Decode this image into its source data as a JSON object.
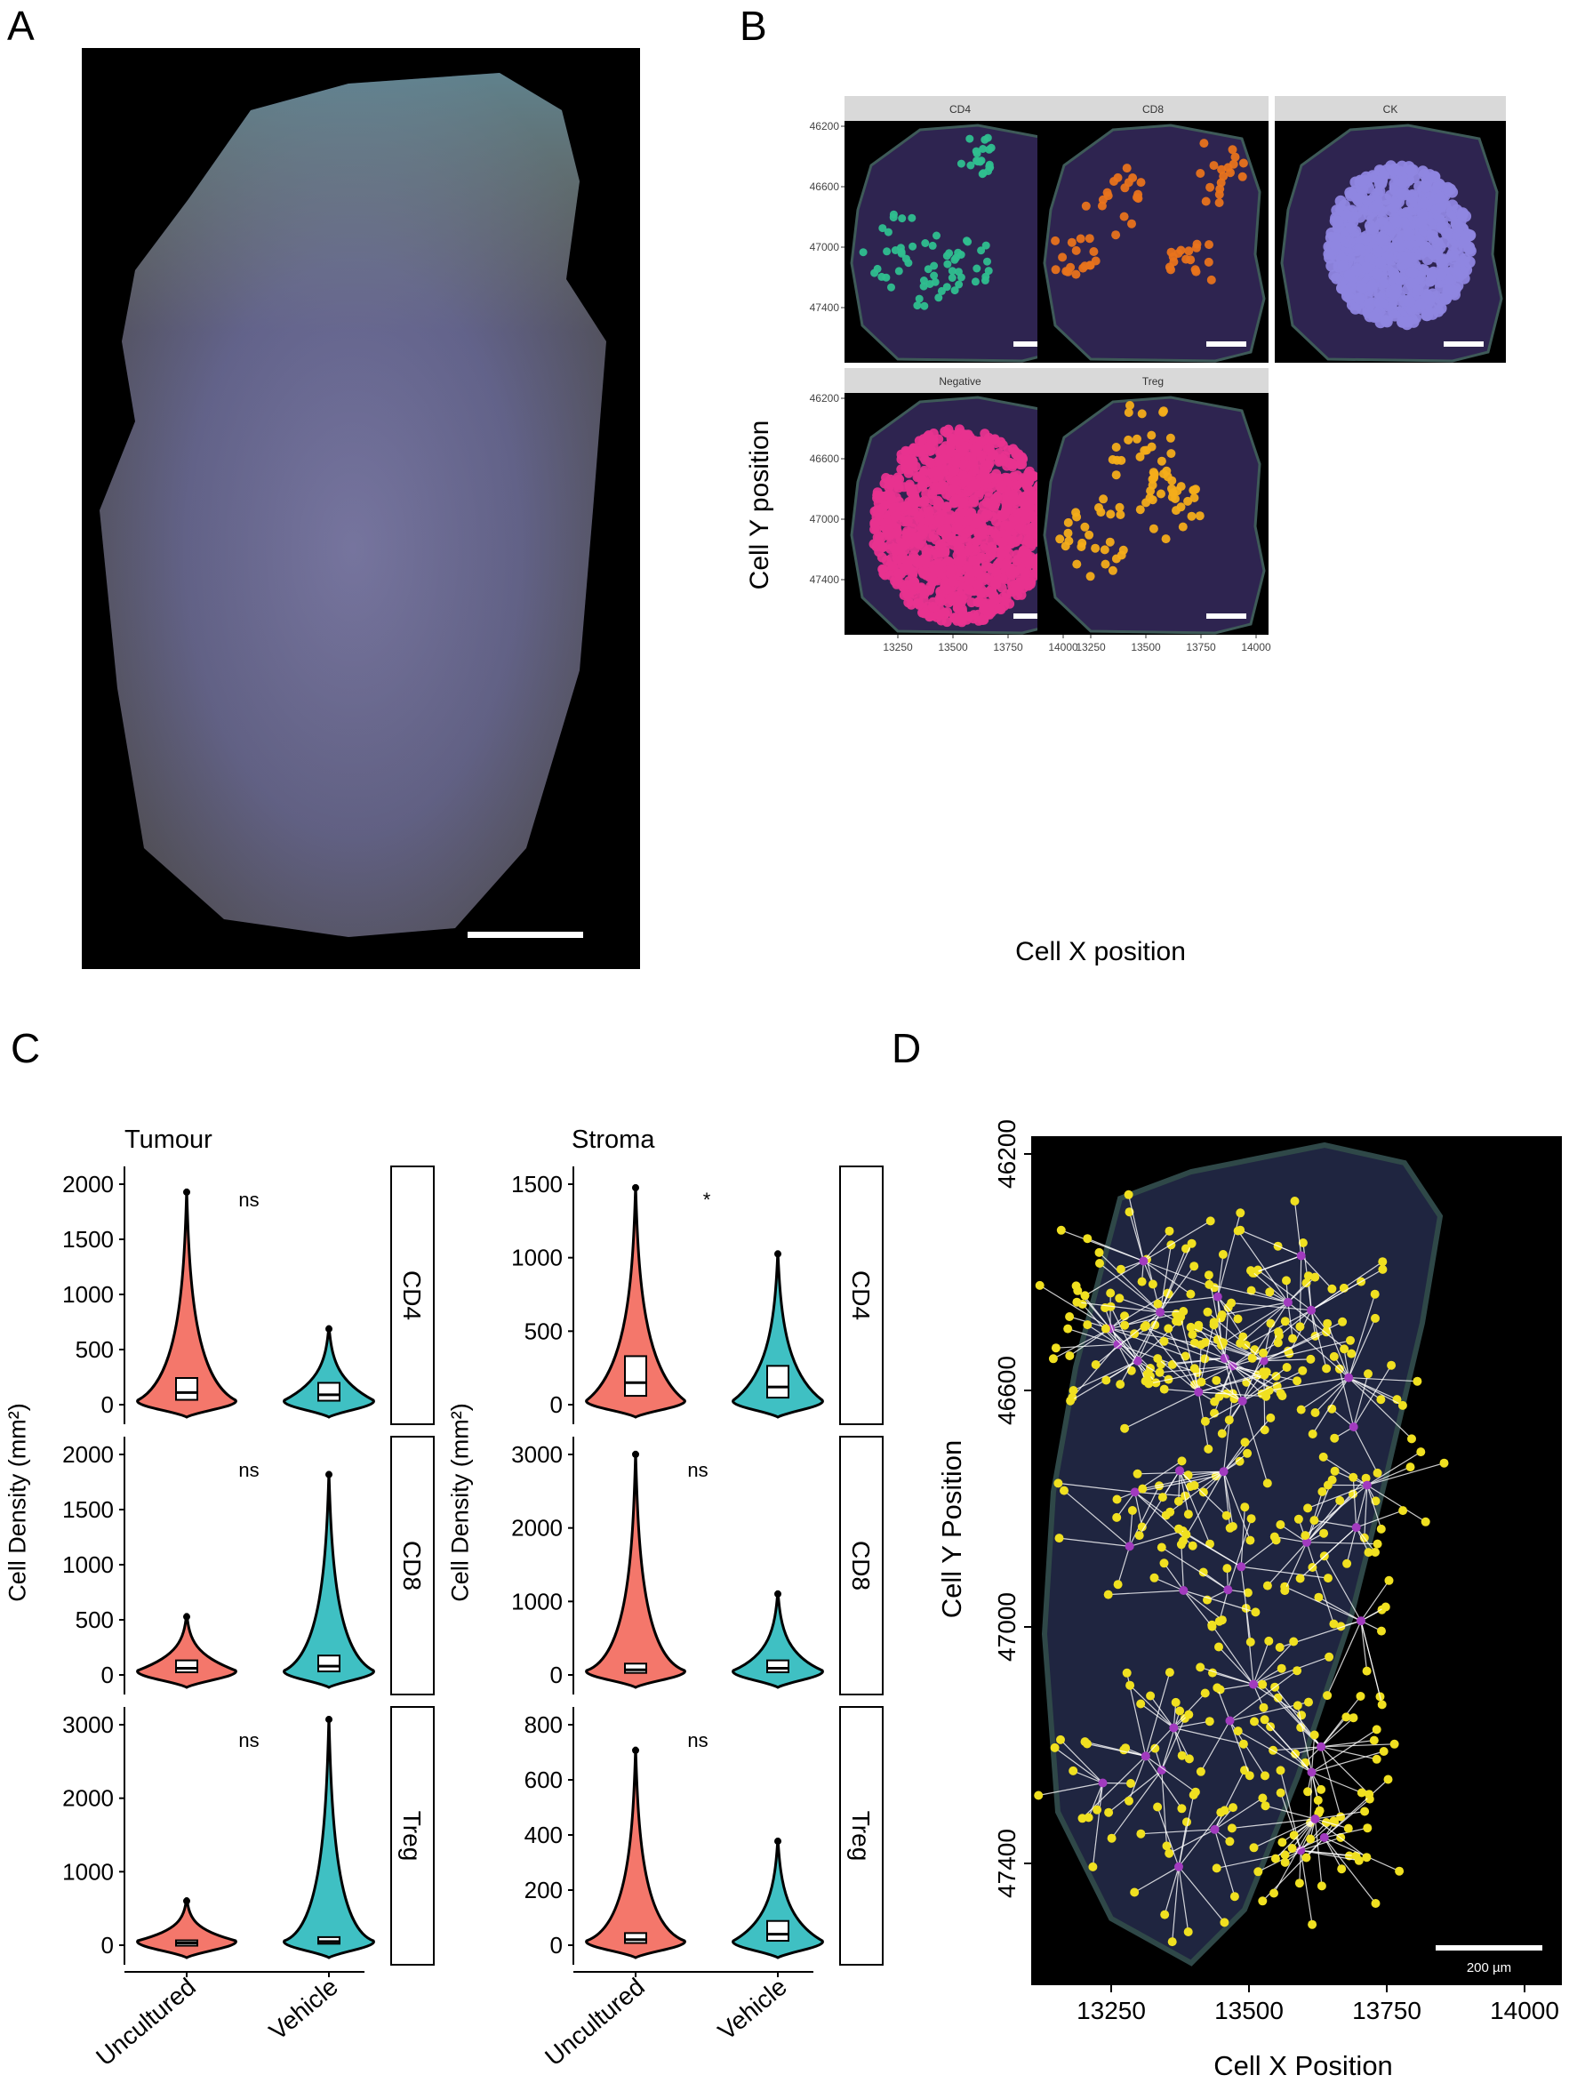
{
  "panels": {
    "a": {
      "letter": "A"
    },
    "b": {
      "letter": "B"
    },
    "c": {
      "letter": "C"
    },
    "d": {
      "letter": "D"
    }
  },
  "colors": {
    "tissue_bg": "#000000",
    "CD4": "#2fbf8f",
    "CD8": "#e8731c",
    "CK": "#8f86e0",
    "Negative": "#e8338f",
    "Treg": "#f4ad1a",
    "violin_uncultured": "#f4776b",
    "violin_vehicle": "#3fc0c3",
    "d_targets": "#f0e020",
    "d_sources": "#a23bbf",
    "d_edges": "#ffffff"
  },
  "panel_b": {
    "facets": [
      "CD4",
      "CD8",
      "CK",
      "Negative",
      "Treg"
    ],
    "y_ticks": [
      "46200",
      "46600",
      "47000",
      "47400"
    ],
    "x_ticks": [
      "13250",
      "13500",
      "13750",
      "14000"
    ],
    "xlabel": "Cell X position",
    "ylabel": "Cell Y position"
  },
  "chart_data": [
    {
      "type": "violin",
      "panel": "C",
      "title": "Tumour",
      "ylabel": "Cell Density (mm²)",
      "categories": [
        "Uncultured",
        "Vehicle"
      ],
      "facets": [
        {
          "name": "CD4",
          "significance": "ns",
          "ylim": [
            0,
            2000
          ],
          "yticks": [
            "0",
            "500",
            "1000",
            "1500",
            "2000"
          ],
          "series": [
            {
              "name": "Uncultured",
              "median": 110,
              "max": 1960
            },
            {
              "name": "Vehicle",
              "median": 90,
              "max": 720
            }
          ]
        },
        {
          "name": "CD8",
          "significance": "ns",
          "ylim": [
            0,
            2000
          ],
          "yticks": [
            "0",
            "500",
            "1000",
            "1500",
            "2000"
          ],
          "series": [
            {
              "name": "Uncultured",
              "median": 60,
              "max": 560
            },
            {
              "name": "Vehicle",
              "median": 80,
              "max": 1850
            }
          ]
        },
        {
          "name": "Treg",
          "significance": "ns",
          "ylim": [
            0,
            3000
          ],
          "yticks": [
            "0",
            "1000",
            "2000",
            "3000"
          ],
          "series": [
            {
              "name": "Uncultured",
              "median": 30,
              "max": 650
            },
            {
              "name": "Vehicle",
              "median": 50,
              "max": 3120
            }
          ]
        }
      ]
    },
    {
      "type": "violin",
      "panel": "C",
      "title": "Stroma",
      "ylabel": "Cell Density (mm²)",
      "categories": [
        "Uncultured",
        "Vehicle"
      ],
      "facets": [
        {
          "name": "CD4",
          "significance": "*",
          "ylim": [
            0,
            1500
          ],
          "yticks": [
            "0",
            "500",
            "1000",
            "1500"
          ],
          "series": [
            {
              "name": "Uncultured",
              "median": 150,
              "max": 1500
            },
            {
              "name": "Vehicle",
              "median": 120,
              "max": 1050
            }
          ]
        },
        {
          "name": "CD8",
          "significance": "ns",
          "ylim": [
            0,
            3000
          ],
          "yticks": [
            "0",
            "1000",
            "2000",
            "3000"
          ],
          "series": [
            {
              "name": "Uncultured",
              "median": 70,
              "max": 3050
            },
            {
              "name": "Vehicle",
              "median": 90,
              "max": 1150
            }
          ]
        },
        {
          "name": "Treg",
          "significance": "ns",
          "ylim": [
            0,
            800
          ],
          "yticks": [
            "0",
            "200",
            "400",
            "600",
            "800"
          ],
          "series": [
            {
              "name": "Uncultured",
              "median": 20,
              "max": 720
            },
            {
              "name": "Vehicle",
              "median": 40,
              "max": 390
            }
          ]
        }
      ]
    }
  ],
  "panel_d": {
    "y_ticks": [
      "46200",
      "46600",
      "47000",
      "47400"
    ],
    "x_ticks": [
      "13250",
      "13500",
      "13750",
      "14000"
    ],
    "xlabel": "Cell X Position",
    "ylabel": "Cell Y Position",
    "scalebar": "200 µm"
  }
}
